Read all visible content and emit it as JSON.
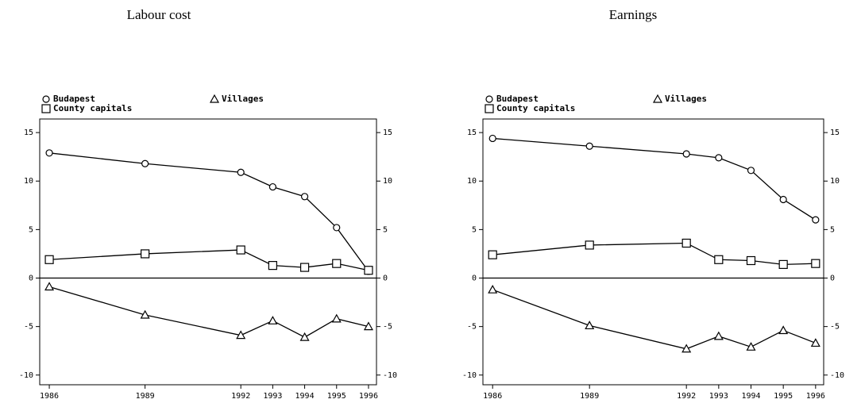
{
  "chart_data": [
    {
      "type": "line",
      "title": "Labour cost",
      "x": [
        1986,
        1989,
        1992,
        1993,
        1994,
        1995,
        1996
      ],
      "xlim": [
        1985.7,
        1996.25
      ],
      "xticks": [
        1986,
        1989,
        1992,
        1993,
        1994,
        1995,
        1996
      ],
      "ylim": [
        -11,
        16.4
      ],
      "yticks": [
        -10,
        -5,
        0,
        5,
        10,
        15
      ],
      "zero_line": true,
      "series": [
        {
          "name": "Budapest",
          "color": "#000000",
          "marker": "circle",
          "values": [
            12.9,
            11.8,
            10.9,
            9.4,
            8.4,
            5.2,
            0.7
          ]
        },
        {
          "name": "County capitals",
          "color": "#000000",
          "marker": "square",
          "values": [
            1.9,
            2.5,
            2.9,
            1.3,
            1.1,
            1.5,
            0.8
          ]
        },
        {
          "name": "Villages",
          "color": "#000000",
          "marker": "triangle",
          "values": [
            -0.9,
            -3.8,
            -5.9,
            -4.4,
            -6.1,
            -4.2,
            -5.0
          ]
        }
      ]
    },
    {
      "type": "line",
      "title": "Earnings",
      "x": [
        1986,
        1989,
        1992,
        1993,
        1994,
        1995,
        1996
      ],
      "xlim": [
        1985.7,
        1996.25
      ],
      "xticks": [
        1986,
        1989,
        1992,
        1993,
        1994,
        1995,
        1996
      ],
      "ylim": [
        -11,
        16.4
      ],
      "yticks": [
        -10,
        -5,
        0,
        5,
        10,
        15
      ],
      "zero_line": true,
      "series": [
        {
          "name": "Budapest",
          "color": "#000000",
          "marker": "circle",
          "values": [
            14.4,
            13.6,
            12.8,
            12.4,
            11.1,
            8.1,
            6.0
          ]
        },
        {
          "name": "County capitals",
          "color": "#000000",
          "marker": "square",
          "values": [
            2.4,
            3.4,
            3.6,
            1.9,
            1.8,
            1.4,
            1.5
          ]
        },
        {
          "name": "Villages",
          "color": "#000000",
          "marker": "triangle",
          "values": [
            -1.2,
            -4.9,
            -7.3,
            -6.0,
            -7.1,
            -5.4,
            -6.7
          ]
        }
      ]
    }
  ]
}
